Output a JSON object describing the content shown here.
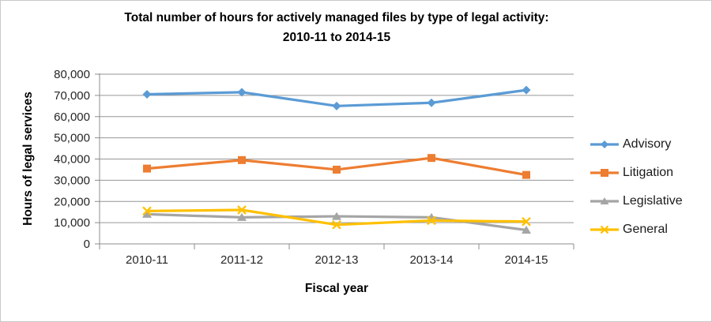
{
  "chart_data": {
    "type": "line",
    "title": "Total number of hours for actively managed files by type of legal activity:",
    "title_line2": "2010-11 to 2014-15",
    "xlabel": "Fiscal year",
    "ylabel": "Hours of legal services",
    "categories": [
      "2010-11",
      "2011-12",
      "2012-13",
      "2013-14",
      "2014-15"
    ],
    "series": [
      {
        "name": "Advisory",
        "marker": "diamond",
        "color": "#5B9BD5",
        "values": [
          70500,
          71500,
          65000,
          66500,
          72500
        ]
      },
      {
        "name": "Litigation",
        "marker": "square",
        "color": "#ED7D31",
        "values": [
          35500,
          39500,
          35000,
          40500,
          32500
        ]
      },
      {
        "name": "Legislative",
        "marker": "triangle",
        "color": "#A5A5A5",
        "values": [
          14000,
          12500,
          13000,
          12500,
          6500
        ]
      },
      {
        "name": "General",
        "marker": "x",
        "color": "#FFC000",
        "values": [
          15500,
          16000,
          9000,
          11000,
          10500
        ]
      }
    ],
    "ylim": [
      0,
      80000
    ],
    "ytick_step": 10000,
    "grid": "horizontal-major",
    "legend_position": "right",
    "axis_color": "#8c8c8c",
    "grid_color": "#969696"
  }
}
